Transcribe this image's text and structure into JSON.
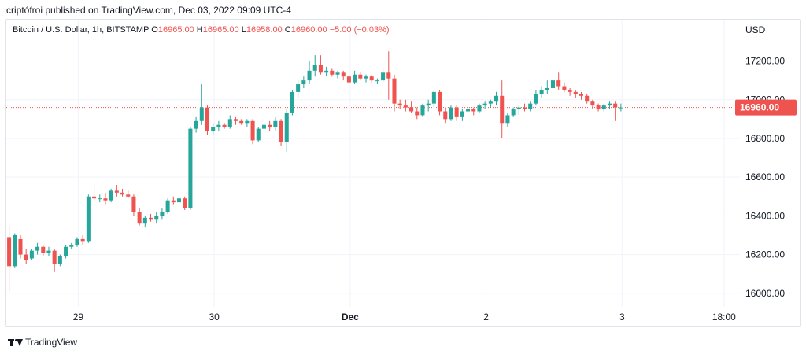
{
  "publisher": "criptófroi published on TradingView.com, Dec 03, 2022 09:09 UTC-4",
  "legend": {
    "symbol": "Bitcoin / U.S. Dollar, 1h, BITSTAMP",
    "open_label": "O",
    "open": "16965.00",
    "high_label": "H",
    "high": "16965.00",
    "low_label": "L",
    "low": "16958.00",
    "close_label": "C",
    "close": "16960.00",
    "change": "−5.00 (−0.03%)"
  },
  "footer": {
    "brand": "TradingView",
    "logo_icon": "tradingview-logo-icon"
  },
  "colors": {
    "up": "#26a69a",
    "down": "#ef5350",
    "grid": "#f0f3fa",
    "text": "#131722"
  },
  "chart_data": {
    "type": "candlestick",
    "currency": "USD",
    "last_price": 16960,
    "last_price_label": "16960.00",
    "ylim": [
      15930,
      17320
    ],
    "y_ticks": [
      "16000.00",
      "16200.00",
      "16400.00",
      "16600.00",
      "16800.00",
      "17000.00",
      "17200.00"
    ],
    "x_ticks": [
      {
        "label": "29",
        "bold": false,
        "t": 12.2
      },
      {
        "label": "30",
        "bold": false,
        "t": 36.2
      },
      {
        "label": "Dec",
        "bold": true,
        "t": 60.2
      },
      {
        "label": "2",
        "bold": false,
        "t": 84.2
      },
      {
        "label": "3",
        "bold": false,
        "t": 108.2
      },
      {
        "label": "18:00",
        "bold": false,
        "t": 126.2
      }
    ],
    "x_range": [
      -0.5,
      129
    ],
    "candles": [
      [
        16290,
        16350,
        16010,
        16140
      ],
      [
        16140,
        16310,
        16130,
        16300
      ],
      [
        16280,
        16300,
        16180,
        16200
      ],
      [
        16200,
        16230,
        16150,
        16170
      ],
      [
        16180,
        16230,
        16170,
        16220
      ],
      [
        16220,
        16260,
        16200,
        16240
      ],
      [
        16240,
        16250,
        16190,
        16210
      ],
      [
        16210,
        16240,
        16190,
        16220
      ],
      [
        16220,
        16230,
        16110,
        16150
      ],
      [
        16150,
        16200,
        16140,
        16190
      ],
      [
        16190,
        16250,
        16180,
        16240
      ],
      [
        16240,
        16260,
        16230,
        16250
      ],
      [
        16250,
        16290,
        16240,
        16280
      ],
      [
        16280,
        16300,
        16250,
        16270
      ],
      [
        16270,
        16510,
        16260,
        16500
      ],
      [
        16500,
        16560,
        16470,
        16490
      ],
      [
        16490,
        16510,
        16470,
        16490
      ],
      [
        16490,
        16520,
        16460,
        16480
      ],
      [
        16480,
        16540,
        16470,
        16530
      ],
      [
        16530,
        16560,
        16500,
        16520
      ],
      [
        16520,
        16540,
        16500,
        16510
      ],
      [
        16510,
        16530,
        16490,
        16500
      ],
      [
        16500,
        16510,
        16400,
        16420
      ],
      [
        16420,
        16440,
        16350,
        16360
      ],
      [
        16360,
        16400,
        16340,
        16390
      ],
      [
        16390,
        16410,
        16370,
        16380
      ],
      [
        16380,
        16420,
        16360,
        16400
      ],
      [
        16400,
        16440,
        16380,
        16420
      ],
      [
        16420,
        16490,
        16410,
        16480
      ],
      [
        16480,
        16500,
        16460,
        16470
      ],
      [
        16470,
        16500,
        16460,
        16490
      ],
      [
        16490,
        16500,
        16430,
        16440
      ],
      [
        16440,
        16860,
        16430,
        16850
      ],
      [
        16850,
        16910,
        16830,
        16890
      ],
      [
        16890,
        17080,
        16870,
        16960
      ],
      [
        16960,
        16970,
        16820,
        16840
      ],
      [
        16840,
        16880,
        16820,
        16860
      ],
      [
        16860,
        16890,
        16840,
        16870
      ],
      [
        16870,
        16880,
        16850,
        16860
      ],
      [
        16860,
        16920,
        16850,
        16900
      ],
      [
        16900,
        16910,
        16870,
        16890
      ],
      [
        16890,
        16900,
        16870,
        16880
      ],
      [
        16880,
        16900,
        16860,
        16890
      ],
      [
        16890,
        16900,
        16770,
        16790
      ],
      [
        16790,
        16860,
        16780,
        16850
      ],
      [
        16850,
        16880,
        16840,
        16870
      ],
      [
        16870,
        16890,
        16840,
        16860
      ],
      [
        16860,
        16910,
        16840,
        16890
      ],
      [
        16890,
        16900,
        16760,
        16780
      ],
      [
        16780,
        16950,
        16730,
        16930
      ],
      [
        16930,
        17050,
        16920,
        17040
      ],
      [
        17040,
        17100,
        17010,
        17080
      ],
      [
        17080,
        17120,
        17060,
        17100
      ],
      [
        17100,
        17200,
        17080,
        17150
      ],
      [
        17150,
        17230,
        17120,
        17180
      ],
      [
        17180,
        17230,
        17130,
        17140
      ],
      [
        17140,
        17170,
        17120,
        17150
      ],
      [
        17150,
        17160,
        17120,
        17130
      ],
      [
        17130,
        17150,
        17110,
        17140
      ],
      [
        17140,
        17150,
        17100,
        17120
      ],
      [
        17120,
        17130,
        17080,
        17090
      ],
      [
        17090,
        17150,
        17080,
        17130
      ],
      [
        17130,
        17140,
        17100,
        17110
      ],
      [
        17110,
        17130,
        17090,
        17120
      ],
      [
        17120,
        17130,
        17090,
        17100
      ],
      [
        17100,
        17110,
        17080,
        17100
      ],
      [
        17100,
        17160,
        17090,
        17140
      ],
      [
        17140,
        17250,
        17000,
        17110
      ],
      [
        17110,
        17130,
        16940,
        16980
      ],
      [
        16980,
        17000,
        16950,
        16970
      ],
      [
        16970,
        17000,
        16940,
        16960
      ],
      [
        16960,
        16990,
        16930,
        16940
      ],
      [
        16940,
        16960,
        16900,
        16920
      ],
      [
        16920,
        16980,
        16910,
        16970
      ],
      [
        16970,
        17000,
        16940,
        16980
      ],
      [
        16980,
        17050,
        16960,
        17040
      ],
      [
        17040,
        17050,
        16920,
        16940
      ],
      [
        16940,
        16960,
        16880,
        16900
      ],
      [
        16900,
        16970,
        16890,
        16960
      ],
      [
        16960,
        16970,
        16890,
        16910
      ],
      [
        16910,
        16950,
        16890,
        16940
      ],
      [
        16940,
        16960,
        16930,
        16950
      ],
      [
        16950,
        16960,
        16920,
        16940
      ],
      [
        16940,
        16980,
        16930,
        16970
      ],
      [
        16970,
        16990,
        16950,
        16980
      ],
      [
        16980,
        17000,
        16960,
        16990
      ],
      [
        16990,
        17040,
        16970,
        17020
      ],
      [
        17020,
        17100,
        16800,
        16880
      ],
      [
        16880,
        16930,
        16860,
        16920
      ],
      [
        16920,
        16960,
        16910,
        16950
      ],
      [
        16950,
        16970,
        16920,
        16960
      ],
      [
        16960,
        16980,
        16940,
        16950
      ],
      [
        16950,
        16990,
        16940,
        16980
      ],
      [
        16980,
        17050,
        16970,
        17030
      ],
      [
        17030,
        17070,
        17010,
        17050
      ],
      [
        17050,
        17100,
        17030,
        17060
      ],
      [
        17060,
        17120,
        17040,
        17100
      ],
      [
        17100,
        17140,
        17050,
        17070
      ],
      [
        17070,
        17090,
        17040,
        17050
      ],
      [
        17050,
        17060,
        17020,
        17040
      ],
      [
        17040,
        17050,
        17010,
        17030
      ],
      [
        17030,
        17040,
        17000,
        17020
      ],
      [
        17020,
        17030,
        16980,
        16990
      ],
      [
        16990,
        17000,
        16950,
        16970
      ],
      [
        16970,
        16980,
        16940,
        16950
      ],
      [
        16950,
        16980,
        16940,
        16970
      ],
      [
        16970,
        16990,
        16950,
        16980
      ],
      [
        16980,
        16990,
        16890,
        16960
      ],
      [
        16960,
        16980,
        16940,
        16960
      ]
    ]
  }
}
